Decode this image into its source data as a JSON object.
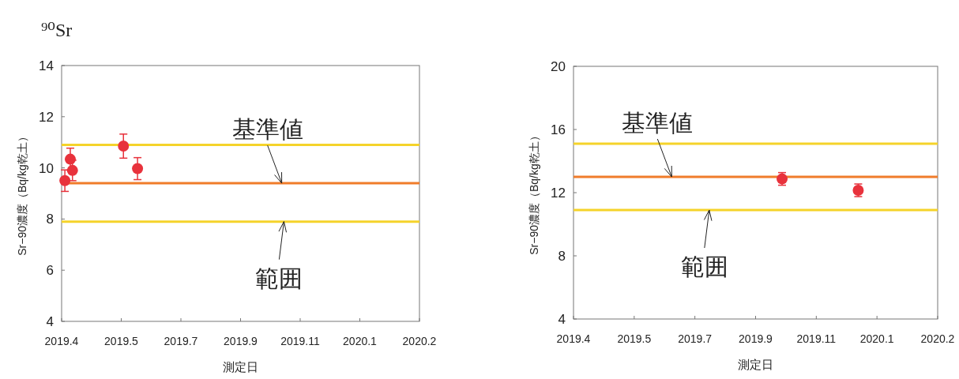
{
  "chart_data": [
    {
      "type": "scatter",
      "title": "⁹⁰Sr",
      "xlabel": "測定日",
      "ylabel": "Sr−90濃度（Bq/kg乾土）",
      "marker": "circle",
      "x": [
        "2019-04-04",
        "2019-04-09",
        "2019-04-11",
        "2019-05-28",
        "2019-06-10"
      ],
      "series": [
        {
          "color": "#e8323c",
          "values": [
            9.5,
            10.34,
            9.9,
            10.85,
            9.97
          ],
          "errors": [
            0.42,
            0.43,
            0.4,
            0.47,
            0.43
          ]
        }
      ],
      "xlim": [
        "2019-04-01",
        "2020-02-25"
      ],
      "xticks": [
        {
          "value": "2019-04-01",
          "label": "2019.4"
        },
        {
          "value": "2019-05-26",
          "label": "2019.5"
        },
        {
          "value": "2019-07-20",
          "label": "2019.7"
        },
        {
          "value": "2019-09-13",
          "label": "2019.9"
        },
        {
          "value": "2019-11-07",
          "label": "2019.11"
        },
        {
          "value": "2020-01-01",
          "label": "2020.1"
        },
        {
          "value": "2020-02-25",
          "label": "2020.2"
        }
      ],
      "ylim": [
        4,
        14
      ],
      "yticks": [
        4,
        6,
        8,
        10,
        12,
        14
      ],
      "ref_lines": [
        {
          "axis": "y",
          "value": 10.9,
          "color": "#f5d32a"
        },
        {
          "axis": "y",
          "value": 9.4,
          "color": "#f07c2a"
        },
        {
          "axis": "y",
          "value": 7.9,
          "color": "#f5d32a"
        }
      ],
      "annotations": [
        {
          "text": "基準値",
          "x": "2019-10-21",
          "y": 9.4
        },
        {
          "text": "範囲",
          "x": "2019-10-23",
          "y": 7.9
        }
      ],
      "grid": false
    },
    {
      "type": "scatter",
      "xlabel": "測定日",
      "ylabel": "Sr−90濃度（Bq/kg乾土）",
      "marker": "circle",
      "x": [
        "2019-10-07",
        "2019-12-15"
      ],
      "series": [
        {
          "color": "#e8323c",
          "values": [
            12.87,
            12.15
          ],
          "errors": [
            0.4,
            0.4
          ]
        }
      ],
      "xlim": [
        "2019-04-01",
        "2020-02-25"
      ],
      "xticks": [
        {
          "value": "2019-04-01",
          "label": "2019.4"
        },
        {
          "value": "2019-05-26",
          "label": "2019.5"
        },
        {
          "value": "2019-07-20",
          "label": "2019.7"
        },
        {
          "value": "2019-09-13",
          "label": "2019.9"
        },
        {
          "value": "2019-11-07",
          "label": "2019.11"
        },
        {
          "value": "2020-01-01",
          "label": "2020.1"
        },
        {
          "value": "2020-02-25",
          "label": "2020.2"
        }
      ],
      "ylim": [
        4,
        20
      ],
      "yticks": [
        4,
        8,
        12,
        16,
        20
      ],
      "ref_lines": [
        {
          "axis": "y",
          "value": 15.1,
          "color": "#f5d32a"
        },
        {
          "axis": "y",
          "value": 13.0,
          "color": "#f07c2a"
        },
        {
          "axis": "y",
          "value": 10.9,
          "color": "#f5d32a"
        }
      ],
      "annotations": [
        {
          "text": "基準値",
          "x": "2019-06-29",
          "y": 13.0
        },
        {
          "text": "範囲",
          "x": "2019-08-02",
          "y": 10.9
        }
      ],
      "grid": false
    }
  ]
}
